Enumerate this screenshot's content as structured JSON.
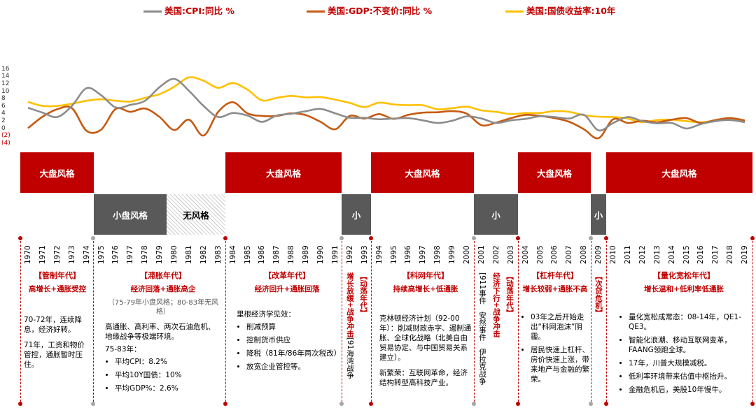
{
  "chart_data": {
    "type": "line",
    "x": [
      1970,
      1971,
      1972,
      1973,
      1974,
      1975,
      1976,
      1977,
      1978,
      1979,
      1980,
      1981,
      1982,
      1983,
      1984,
      1985,
      1986,
      1987,
      1988,
      1989,
      1990,
      1991,
      1992,
      1993,
      1994,
      1995,
      1996,
      1997,
      1998,
      1999,
      2000,
      2001,
      2002,
      2003,
      2004,
      2005,
      2006,
      2007,
      2008,
      2009,
      2010,
      2011,
      2012,
      2013,
      2014,
      2015,
      2016,
      2017,
      2018,
      2019
    ],
    "ylim": [
      -4,
      16
    ],
    "yticks": [
      "16",
      "14",
      "12",
      "10",
      "8",
      "6",
      "4",
      "2",
      "0",
      "(2)",
      "(4)"
    ],
    "series": [
      {
        "name": "美国:CPI:同比 %",
        "color": "#8c8c8c",
        "values": [
          5.7,
          4.4,
          3.2,
          6.2,
          11.0,
          9.1,
          5.8,
          6.5,
          7.6,
          11.3,
          13.5,
          10.3,
          6.2,
          3.2,
          4.3,
          3.6,
          1.9,
          3.6,
          4.1,
          4.8,
          5.4,
          4.2,
          3.0,
          3.0,
          2.6,
          2.8,
          2.9,
          2.3,
          1.6,
          2.2,
          3.4,
          2.8,
          1.6,
          2.3,
          2.7,
          3.4,
          3.2,
          2.8,
          3.8,
          -0.4,
          1.6,
          3.2,
          2.1,
          1.5,
          1.6,
          0.1,
          1.3,
          2.1,
          2.4,
          1.8
        ]
      },
      {
        "name": "美国:GDP:不变价:同比 %",
        "color": "#c55a11",
        "values": [
          0.2,
          3.3,
          5.3,
          5.6,
          -0.5,
          -0.2,
          5.4,
          4.6,
          5.5,
          3.2,
          -0.3,
          2.5,
          -1.8,
          4.6,
          7.2,
          4.2,
          3.5,
          3.5,
          4.2,
          3.7,
          1.9,
          -0.1,
          3.5,
          2.8,
          4.0,
          2.7,
          3.8,
          4.4,
          4.5,
          4.8,
          4.1,
          1.0,
          1.7,
          2.9,
          3.8,
          3.5,
          2.9,
          1.9,
          -0.1,
          -2.5,
          2.6,
          1.6,
          2.2,
          1.8,
          2.5,
          2.9,
          1.6,
          2.4,
          2.9,
          2.3
        ]
      },
      {
        "name": "美国:国债收益率:10年",
        "color": "#ffc000",
        "values": [
          7.3,
          6.2,
          6.2,
          6.8,
          7.6,
          8.0,
          7.6,
          7.4,
          8.4,
          9.4,
          11.4,
          13.9,
          13.0,
          11.1,
          12.4,
          10.6,
          7.7,
          8.4,
          8.9,
          8.5,
          8.6,
          7.9,
          7.0,
          5.9,
          7.1,
          6.6,
          6.4,
          6.4,
          5.3,
          5.6,
          6.0,
          5.0,
          4.6,
          4.0,
          4.3,
          4.3,
          4.8,
          4.6,
          3.7,
          3.3,
          3.2,
          2.8,
          1.8,
          2.4,
          2.5,
          2.1,
          1.8,
          2.3,
          2.9,
          2.1
        ]
      }
    ]
  },
  "bands": [
    {
      "label": "大盘风格",
      "type": "big"
    },
    {
      "label": "小盘风格",
      "type": "small"
    },
    {
      "label": "无风格",
      "type": "none"
    },
    {
      "label": "大盘风格",
      "type": "big"
    },
    {
      "label": "小",
      "type": "small"
    },
    {
      "label": "大盘风格",
      "type": "big"
    },
    {
      "label": "小",
      "type": "small"
    },
    {
      "label": "大盘风格",
      "type": "big"
    },
    {
      "label": "小",
      "type": "small"
    },
    {
      "label": "大盘风格",
      "type": "big"
    }
  ],
  "sections": {
    "s1": {
      "title": "【管制年代】",
      "sub": "高增长+通胀受控",
      "p1": "70-72年，连续降息，经济好转。",
      "p2": "71年，工资和物价管控，通胀暂时压住。"
    },
    "s2": {
      "title": "【滞胀年代】",
      "sub": "经济回落+通胀高企",
      "note": "（75-79年小盘风格；80-83年无风格）",
      "p1": "高通胀、高利率、两次石油危机、地缘战争等极端环境。",
      "p2": "75-83年：",
      "items": [
        "平均CPI：8.2%",
        "平均10Y国债：10%",
        "平均GDP%：2.6%"
      ]
    },
    "s3": {
      "title": "【改革年代】",
      "sub": "经济回升+通胀回落",
      "p1": "里根经济学见效：",
      "items": [
        "削减预算",
        "控制货币供应",
        "降税（81年/86年两次税改）",
        "放宽企业管控等。"
      ]
    },
    "v1": {
      "red": "【动荡年代】",
      "black": ""
    },
    "v2": {
      "red": "增长放缓+战争冲击",
      "black": "[91海湾战争"
    },
    "s4": {
      "title": "【科网年代】",
      "sub": "持续高增长+低通胀",
      "p1": "克林顿经济计划（92-00年）：削减财政赤字、遏制通胀、全球化战略（北美自由贸易协定、与中国贸易关系建立）。",
      "p2": "新繁荣：互联网革命，经济结构转型高科技产业。"
    },
    "v3": {
      "red": "",
      "black": "[911事件　安然事件　伊拉克战争"
    },
    "v4": {
      "red": "经济下行+战争冲击",
      "black": ""
    },
    "v5": {
      "red": "【动荡年代】",
      "black": ""
    },
    "s5": {
      "title": "【杠杆年代】",
      "sub": "增长较弱+通胀不高",
      "items": [
        "03年之后开始走出“科网泡沫”阴霾。",
        "居民快速上杠杆、房价快速上涨，带来地产与金融的繁荣。"
      ]
    },
    "v6": {
      "red": "【次贷危机】",
      "black": ""
    },
    "s6": {
      "title": "【量化宽松年代】",
      "sub": "增长温和+低利率低通胀",
      "items": [
        "量化宽松成常态：08-14年，QE1-QE3。",
        "智能化浪潮、移动互联网变革，FAANG领跑全球。",
        "17年，川普大规模减税。",
        "低利率环境带来估值中枢抬升。",
        "金融危机后，美股10年慢牛。"
      ]
    }
  }
}
